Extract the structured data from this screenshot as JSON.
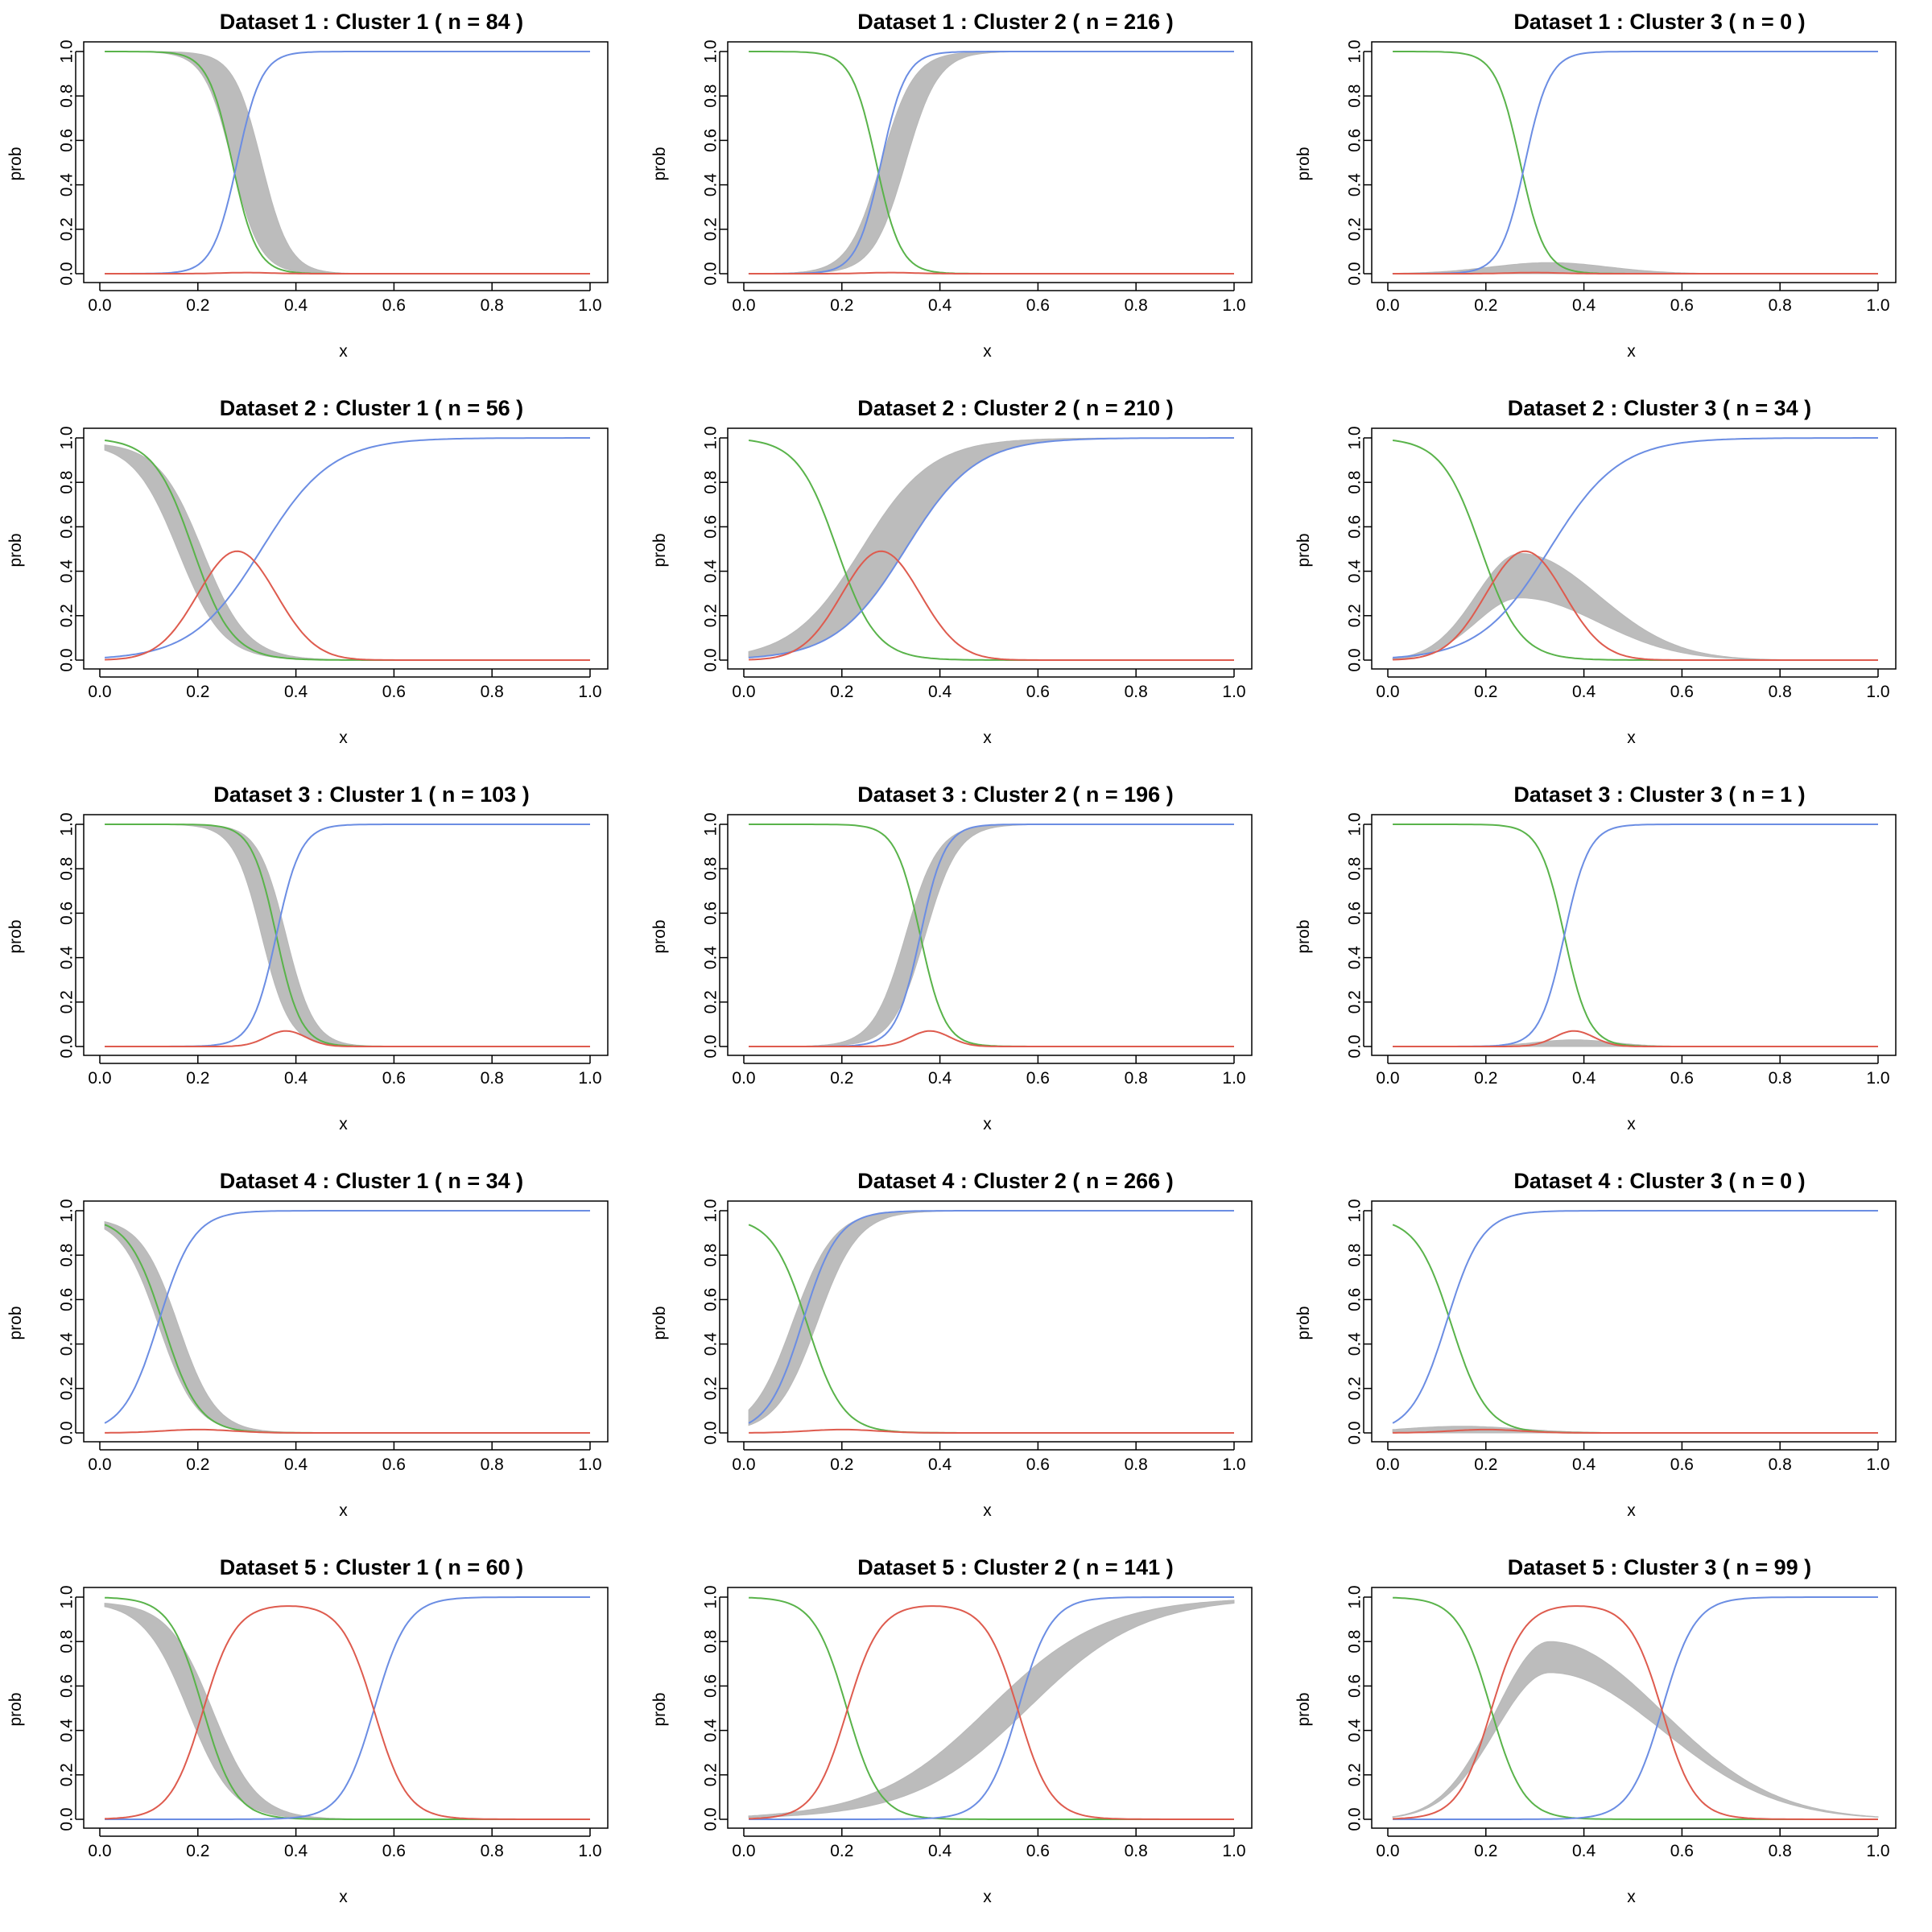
{
  "colors": {
    "green": "#59b34a",
    "blue": "#6b8de3",
    "red": "#de5b4e",
    "band": "#b8b8b8"
  },
  "chart_data": [
    {
      "type": "line",
      "title": "Dataset 1 : Cluster 1 ( n =  84 )",
      "xlabel": "x",
      "ylabel": "prob",
      "xlim": [
        0,
        1
      ],
      "ylim": [
        0,
        1
      ],
      "x_ticks": [
        "0.0",
        "0.2",
        "0.4",
        "0.6",
        "0.8",
        "1.0"
      ],
      "y_ticks": [
        "0.0",
        "0.2",
        "0.4",
        "0.6",
        "0.8",
        "1.0"
      ],
      "series": [
        {
          "color": "green",
          "shape": "decreasing_sigmoid",
          "midpoint": 0.27,
          "steepness": 40,
          "start": 1.0
        },
        {
          "color": "blue",
          "shape": "increasing_sigmoid",
          "midpoint": 0.28,
          "steepness": 40,
          "end": 1.0
        },
        {
          "color": "red",
          "shape": "bump",
          "center": 0.3,
          "peak": 0.005,
          "width": 0.05
        }
      ],
      "band": {
        "shape": "decreasing_sigmoid",
        "midpoint_range": [
          0.27,
          0.33
        ],
        "steepness": 35,
        "level": 1.0
      }
    },
    {
      "type": "line",
      "title": "Dataset 1 : Cluster 2 ( n =  216 )",
      "xlabel": "x",
      "ylabel": "prob",
      "xlim": [
        0,
        1
      ],
      "ylim": [
        0,
        1
      ],
      "x_ticks": [
        "0.0",
        "0.2",
        "0.4",
        "0.6",
        "0.8",
        "1.0"
      ],
      "y_ticks": [
        "0.0",
        "0.2",
        "0.4",
        "0.6",
        "0.8",
        "1.0"
      ],
      "series": [
        {
          "color": "green",
          "shape": "decreasing_sigmoid",
          "midpoint": 0.27,
          "steepness": 40,
          "start": 1.0
        },
        {
          "color": "blue",
          "shape": "increasing_sigmoid",
          "midpoint": 0.28,
          "steepness": 40,
          "end": 1.0
        },
        {
          "color": "red",
          "shape": "bump",
          "center": 0.3,
          "peak": 0.005,
          "width": 0.05
        }
      ],
      "band": {
        "shape": "increasing_sigmoid",
        "midpoint_range": [
          0.28,
          0.33
        ],
        "steepness": 30,
        "level": 1.0
      }
    },
    {
      "type": "line",
      "title": "Dataset 1 : Cluster 3 ( n =  0 )",
      "xlabel": "x",
      "ylabel": "prob",
      "xlim": [
        0,
        1
      ],
      "ylim": [
        0,
        1
      ],
      "x_ticks": [
        "0.0",
        "0.2",
        "0.4",
        "0.6",
        "0.8",
        "1.0"
      ],
      "y_ticks": [
        "0.0",
        "0.2",
        "0.4",
        "0.6",
        "0.8",
        "1.0"
      ],
      "series": [
        {
          "color": "green",
          "shape": "decreasing_sigmoid",
          "midpoint": 0.27,
          "steepness": 40,
          "start": 1.0
        },
        {
          "color": "blue",
          "shape": "increasing_sigmoid",
          "midpoint": 0.28,
          "steepness": 40,
          "end": 1.0
        },
        {
          "color": "red",
          "shape": "bump",
          "center": 0.3,
          "peak": 0.005,
          "width": 0.05
        }
      ],
      "band": {
        "shape": "bump",
        "center": 0.33,
        "peak_range": [
          0.0,
          0.05
        ],
        "width": 0.12
      }
    },
    {
      "type": "line",
      "title": "Dataset 2 : Cluster 1 ( n =  56 )",
      "xlabel": "x",
      "ylabel": "prob",
      "xlim": [
        0,
        1
      ],
      "ylim": [
        0,
        1
      ],
      "x_ticks": [
        "0.0",
        "0.2",
        "0.4",
        "0.6",
        "0.8",
        "1.0"
      ],
      "y_ticks": [
        "0.0",
        "0.2",
        "0.4",
        "0.6",
        "0.8",
        "1.0"
      ],
      "series": [
        {
          "color": "green",
          "shape": "decreasing_sigmoid",
          "midpoint": 0.19,
          "steepness": 25,
          "start": 1.0
        },
        {
          "color": "blue",
          "shape": "increasing_sigmoid",
          "midpoint": 0.33,
          "steepness": 14,
          "end": 1.0
        },
        {
          "color": "red",
          "shape": "bump",
          "center": 0.28,
          "peak": 0.49,
          "width": 0.08
        }
      ],
      "band": {
        "shape": "decreasing_sigmoid",
        "midpoint_range": [
          0.16,
          0.21
        ],
        "steepness": 22,
        "level": 0.98
      }
    },
    {
      "type": "line",
      "title": "Dataset 2 : Cluster 2 ( n =  210 )",
      "xlabel": "x",
      "ylabel": "prob",
      "xlim": [
        0,
        1
      ],
      "ylim": [
        0,
        1
      ],
      "x_ticks": [
        "0.0",
        "0.2",
        "0.4",
        "0.6",
        "0.8",
        "1.0"
      ],
      "y_ticks": [
        "0.0",
        "0.2",
        "0.4",
        "0.6",
        "0.8",
        "1.0"
      ],
      "series": [
        {
          "color": "green",
          "shape": "decreasing_sigmoid",
          "midpoint": 0.19,
          "steepness": 25,
          "start": 1.0
        },
        {
          "color": "blue",
          "shape": "increasing_sigmoid",
          "midpoint": 0.33,
          "steepness": 14,
          "end": 1.0
        },
        {
          "color": "red",
          "shape": "bump",
          "center": 0.28,
          "peak": 0.49,
          "width": 0.08
        }
      ],
      "band": {
        "shape": "increasing_sigmoid",
        "midpoint_range": [
          0.24,
          0.33
        ],
        "steepness": 14,
        "level": 1.0
      }
    },
    {
      "type": "line",
      "title": "Dataset 2 : Cluster 3 ( n =  34 )",
      "xlabel": "x",
      "ylabel": "prob",
      "xlim": [
        0,
        1
      ],
      "ylim": [
        0,
        1
      ],
      "x_ticks": [
        "0.0",
        "0.2",
        "0.4",
        "0.6",
        "0.8",
        "1.0"
      ],
      "y_ticks": [
        "0.0",
        "0.2",
        "0.4",
        "0.6",
        "0.8",
        "1.0"
      ],
      "series": [
        {
          "color": "green",
          "shape": "decreasing_sigmoid",
          "midpoint": 0.19,
          "steepness": 25,
          "start": 1.0
        },
        {
          "color": "blue",
          "shape": "increasing_sigmoid",
          "midpoint": 0.33,
          "steepness": 14,
          "end": 1.0
        },
        {
          "color": "red",
          "shape": "bump",
          "center": 0.28,
          "peak": 0.49,
          "width": 0.08
        }
      ],
      "band": {
        "shape": "skewed_bump",
        "center": 0.27,
        "peak_range": [
          0.28,
          0.48
        ],
        "width_left": 0.09,
        "width_right": 0.16
      }
    },
    {
      "type": "line",
      "title": "Dataset 3 : Cluster 1 ( n =  103 )",
      "xlabel": "x",
      "ylabel": "prob",
      "xlim": [
        0,
        1
      ],
      "ylim": [
        0,
        1
      ],
      "x_ticks": [
        "0.0",
        "0.2",
        "0.4",
        "0.6",
        "0.8",
        "1.0"
      ],
      "y_ticks": [
        "0.0",
        "0.2",
        "0.4",
        "0.6",
        "0.8",
        "1.0"
      ],
      "series": [
        {
          "color": "green",
          "shape": "decreasing_sigmoid",
          "midpoint": 0.36,
          "steepness": 40,
          "start": 1.0
        },
        {
          "color": "blue",
          "shape": "increasing_sigmoid",
          "midpoint": 0.36,
          "steepness": 40,
          "end": 1.0
        },
        {
          "color": "red",
          "shape": "bump",
          "center": 0.38,
          "peak": 0.07,
          "width": 0.04
        }
      ],
      "band": {
        "shape": "decreasing_sigmoid",
        "midpoint_range": [
          0.33,
          0.38
        ],
        "steepness": 35,
        "level": 1.0
      }
    },
    {
      "type": "line",
      "title": "Dataset 3 : Cluster 2 ( n =  196 )",
      "xlabel": "x",
      "ylabel": "prob",
      "xlim": [
        0,
        1
      ],
      "ylim": [
        0,
        1
      ],
      "x_ticks": [
        "0.0",
        "0.2",
        "0.4",
        "0.6",
        "0.8",
        "1.0"
      ],
      "y_ticks": [
        "0.0",
        "0.2",
        "0.4",
        "0.6",
        "0.8",
        "1.0"
      ],
      "series": [
        {
          "color": "green",
          "shape": "decreasing_sigmoid",
          "midpoint": 0.36,
          "steepness": 40,
          "start": 1.0
        },
        {
          "color": "blue",
          "shape": "increasing_sigmoid",
          "midpoint": 0.36,
          "steepness": 40,
          "end": 1.0
        },
        {
          "color": "red",
          "shape": "bump",
          "center": 0.38,
          "peak": 0.07,
          "width": 0.04
        }
      ],
      "band": {
        "shape": "increasing_sigmoid",
        "midpoint_range": [
          0.33,
          0.37
        ],
        "steepness": 30,
        "level": 1.0
      }
    },
    {
      "type": "line",
      "title": "Dataset 3 : Cluster 3 ( n =  1 )",
      "xlabel": "x",
      "ylabel": "prob",
      "xlim": [
        0,
        1
      ],
      "ylim": [
        0,
        1
      ],
      "x_ticks": [
        "0.0",
        "0.2",
        "0.4",
        "0.6",
        "0.8",
        "1.0"
      ],
      "y_ticks": [
        "0.0",
        "0.2",
        "0.4",
        "0.6",
        "0.8",
        "1.0"
      ],
      "series": [
        {
          "color": "green",
          "shape": "decreasing_sigmoid",
          "midpoint": 0.36,
          "steepness": 40,
          "start": 1.0
        },
        {
          "color": "blue",
          "shape": "increasing_sigmoid",
          "midpoint": 0.36,
          "steepness": 40,
          "end": 1.0
        },
        {
          "color": "red",
          "shape": "bump",
          "center": 0.38,
          "peak": 0.07,
          "width": 0.04
        }
      ],
      "band": {
        "shape": "bump",
        "center": 0.38,
        "peak_range": [
          0.0,
          0.03
        ],
        "width": 0.08
      }
    },
    {
      "type": "line",
      "title": "Dataset 4 : Cluster 1 ( n =  34 )",
      "xlabel": "x",
      "ylabel": "prob",
      "xlim": [
        0,
        1
      ],
      "ylim": [
        0,
        1
      ],
      "x_ticks": [
        "0.0",
        "0.2",
        "0.4",
        "0.6",
        "0.8",
        "1.0"
      ],
      "y_ticks": [
        "0.0",
        "0.2",
        "0.4",
        "0.6",
        "0.8",
        "1.0"
      ],
      "series": [
        {
          "color": "green",
          "shape": "decreasing_sigmoid",
          "midpoint": 0.13,
          "steepness": 28,
          "start": 0.97
        },
        {
          "color": "blue",
          "shape": "increasing_sigmoid",
          "midpoint": 0.12,
          "steepness": 28,
          "end": 1.0
        },
        {
          "color": "red",
          "shape": "bump",
          "center": 0.2,
          "peak": 0.015,
          "width": 0.07
        }
      ],
      "band": {
        "shape": "decreasing_sigmoid",
        "midpoint_range": [
          0.12,
          0.16
        ],
        "steepness": 26,
        "level": 0.97
      }
    },
    {
      "type": "line",
      "title": "Dataset 4 : Cluster 2 ( n =  266 )",
      "xlabel": "x",
      "ylabel": "prob",
      "xlim": [
        0,
        1
      ],
      "ylim": [
        0,
        1
      ],
      "x_ticks": [
        "0.0",
        "0.2",
        "0.4",
        "0.6",
        "0.8",
        "1.0"
      ],
      "y_ticks": [
        "0.0",
        "0.2",
        "0.4",
        "0.6",
        "0.8",
        "1.0"
      ],
      "series": [
        {
          "color": "green",
          "shape": "decreasing_sigmoid",
          "midpoint": 0.13,
          "steepness": 28,
          "start": 0.97
        },
        {
          "color": "blue",
          "shape": "increasing_sigmoid",
          "midpoint": 0.12,
          "steepness": 28,
          "end": 1.0
        },
        {
          "color": "red",
          "shape": "bump",
          "center": 0.2,
          "peak": 0.015,
          "width": 0.07
        }
      ],
      "band": {
        "shape": "increasing_sigmoid",
        "midpoint_range": [
          0.1,
          0.15
        ],
        "steepness": 24,
        "level": 1.0
      }
    },
    {
      "type": "line",
      "title": "Dataset 4 : Cluster 3 ( n =  0 )",
      "xlabel": "x",
      "ylabel": "prob",
      "xlim": [
        0,
        1
      ],
      "ylim": [
        0,
        1
      ],
      "x_ticks": [
        "0.0",
        "0.2",
        "0.4",
        "0.6",
        "0.8",
        "1.0"
      ],
      "y_ticks": [
        "0.0",
        "0.2",
        "0.4",
        "0.6",
        "0.8",
        "1.0"
      ],
      "series": [
        {
          "color": "green",
          "shape": "decreasing_sigmoid",
          "midpoint": 0.13,
          "steepness": 28,
          "start": 0.97
        },
        {
          "color": "blue",
          "shape": "increasing_sigmoid",
          "midpoint": 0.12,
          "steepness": 28,
          "end": 1.0
        },
        {
          "color": "red",
          "shape": "bump",
          "center": 0.2,
          "peak": 0.015,
          "width": 0.07
        }
      ],
      "band": {
        "shape": "bump",
        "center": 0.15,
        "peak_range": [
          0.0,
          0.03
        ],
        "width": 0.12
      }
    },
    {
      "type": "line",
      "title": "Dataset 5 : Cluster 1 ( n =  60 )",
      "xlabel": "x",
      "ylabel": "prob",
      "xlim": [
        0,
        1
      ],
      "ylim": [
        0,
        1
      ],
      "x_ticks": [
        "0.0",
        "0.2",
        "0.4",
        "0.6",
        "0.8",
        "1.0"
      ],
      "y_ticks": [
        "0.0",
        "0.2",
        "0.4",
        "0.6",
        "0.8",
        "1.0"
      ],
      "series": [
        {
          "color": "green",
          "shape": "decreasing_sigmoid",
          "midpoint": 0.21,
          "steepness": 30,
          "start": 1.0
        },
        {
          "color": "blue",
          "shape": "increasing_sigmoid",
          "midpoint": 0.56,
          "steepness": 30,
          "end": 1.0
        },
        {
          "color": "red",
          "shape": "plateau",
          "rise_mid": 0.21,
          "fall_mid": 0.56,
          "steepness": 30,
          "peak": 0.97
        }
      ],
      "band": {
        "shape": "decreasing_sigmoid",
        "midpoint_range": [
          0.18,
          0.23
        ],
        "steepness": 22,
        "level": 0.98
      }
    },
    {
      "type": "line",
      "title": "Dataset 5 : Cluster 2 ( n =  141 )",
      "xlabel": "x",
      "ylabel": "prob",
      "xlim": [
        0,
        1
      ],
      "ylim": [
        0,
        1
      ],
      "x_ticks": [
        "0.0",
        "0.2",
        "0.4",
        "0.6",
        "0.8",
        "1.0"
      ],
      "y_ticks": [
        "0.0",
        "0.2",
        "0.4",
        "0.6",
        "0.8",
        "1.0"
      ],
      "series": [
        {
          "color": "green",
          "shape": "decreasing_sigmoid",
          "midpoint": 0.21,
          "steepness": 30,
          "start": 1.0
        },
        {
          "color": "blue",
          "shape": "increasing_sigmoid",
          "midpoint": 0.56,
          "steepness": 30,
          "end": 1.0
        },
        {
          "color": "red",
          "shape": "plateau",
          "rise_mid": 0.21,
          "fall_mid": 0.56,
          "steepness": 30,
          "peak": 0.97
        }
      ],
      "band": {
        "shape": "increasing_sigmoid",
        "midpoint_range": [
          0.5,
          0.58
        ],
        "steepness": 8.5,
        "level": 1.0
      }
    },
    {
      "type": "line",
      "title": "Dataset 5 : Cluster 3 ( n =  99 )",
      "xlabel": "x",
      "ylabel": "prob",
      "xlim": [
        0,
        1
      ],
      "ylim": [
        0,
        1
      ],
      "x_ticks": [
        "0.0",
        "0.2",
        "0.4",
        "0.6",
        "0.8",
        "1.0"
      ],
      "y_ticks": [
        "0.0",
        "0.2",
        "0.4",
        "0.6",
        "0.8",
        "1.0"
      ],
      "series": [
        {
          "color": "green",
          "shape": "decreasing_sigmoid",
          "midpoint": 0.21,
          "steepness": 30,
          "start": 1.0
        },
        {
          "color": "blue",
          "shape": "increasing_sigmoid",
          "midpoint": 0.56,
          "steepness": 30,
          "end": 1.0
        },
        {
          "color": "red",
          "shape": "plateau",
          "rise_mid": 0.21,
          "fall_mid": 0.56,
          "steepness": 30,
          "peak": 0.97
        }
      ],
      "band": {
        "shape": "skewed_bump",
        "center": 0.33,
        "peak_range": [
          0.66,
          0.8
        ],
        "width_left": 0.11,
        "width_right": 0.23
      }
    }
  ]
}
